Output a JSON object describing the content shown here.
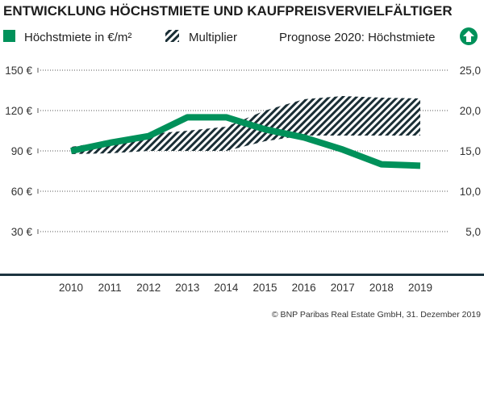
{
  "chart_data": {
    "type": "line",
    "title": "ENTWICKLUNG HÖCHSTMIETE UND KAUFPREISVERVIELFÄLTIGER",
    "categories": [
      "2010",
      "2011",
      "2012",
      "2013",
      "2014",
      "2015",
      "2016",
      "2017",
      "2018",
      "2019"
    ],
    "series": [
      {
        "name": "Höchstmiete in €/m²",
        "type": "line",
        "axis": "left",
        "color": "#00915a",
        "values": [
          90,
          96,
          101,
          115,
          115,
          106,
          100,
          91,
          80,
          79
        ]
      },
      {
        "name": "Multiplier",
        "type": "range-area",
        "axis": "right",
        "color": "#1a2e35",
        "fill": "hatched",
        "low": [
          14.6,
          14.7,
          15.0,
          15.0,
          15.0,
          16.2,
          16.9,
          16.9,
          16.9,
          16.9
        ],
        "high": [
          15.5,
          16.2,
          17.1,
          17.5,
          18.0,
          20.0,
          21.4,
          21.8,
          21.6,
          21.5
        ]
      }
    ],
    "y_left": {
      "ylim": [
        0,
        150
      ],
      "ticks": [
        30,
        60,
        90,
        120,
        150
      ],
      "tick_labels": [
        "30 €",
        "60 €",
        "90 €",
        "120 €",
        "150 €"
      ]
    },
    "y_right": {
      "ylim": [
        0,
        25
      ],
      "ticks": [
        5,
        10,
        15,
        20,
        25
      ],
      "tick_labels": [
        "5,0",
        "10,0",
        "15,0",
        "20,0",
        "25,0"
      ]
    },
    "grid": "horizontal dotted",
    "legend_placement": "top",
    "legend": {
      "rent_label": "Höchstmiete in €/m²",
      "multiplier_label": "Multiplier",
      "forecast_label": "Prognose 2020: Höchstmiete",
      "forecast_icon": "arrow-up-circle-icon",
      "forecast_direction": "up"
    },
    "source": "© BNP Paribas Real Estate GmbH, 31. Dezember 2019"
  }
}
